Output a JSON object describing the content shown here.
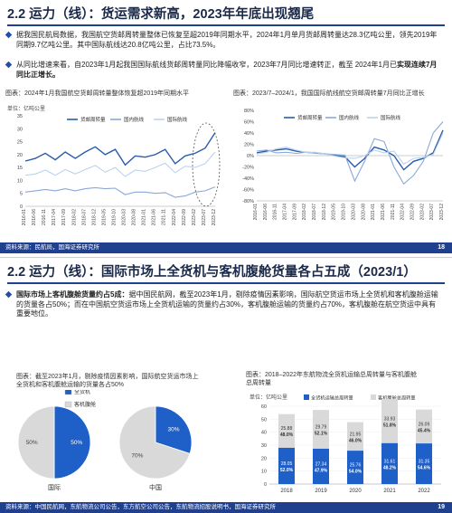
{
  "slide1": {
    "title": "2.2 运力（线）：货运需求新高，2023年年底出现翘尾",
    "bullet1": "据我国民航局数据，我国航空货邮周转量整体已恢复至超2019年同期水平，2024年1月单月货邮周转量达28.3亿吨公里，领先2019年同期9.7亿吨公里。其中国际航线达20.8亿吨公里，占比73.5%。",
    "bullet2a": "从同比增速来看，自2023年1月起我国国际航线货邮周转量同比降幅收窄，2023年7月同比增速转正，截至 2024年1月已",
    "bullet2b": "实现连续7月同比正增长。",
    "chart1_caption": "图表：2024年1月我国航空货邮周转量整体恢复超2019年同期水平",
    "chart2_caption": "图表：2023/7–2024/1，我国国际航线航空货邮周转量7月同比正增长",
    "footer": "资料来源：民航局，国海证券研究所",
    "page": "18"
  },
  "slide2": {
    "title": "2.2 运力（线）：国际市场上全货机与客机腹舱货量各占五成（2023/1）",
    "bullet_bold": "国际市场上客机腹舱货量约占5成：",
    "bullet_text": "据中国民航网，截至2023年1月，剔除疫情因素影响，国际航空货运市场上全货机和客机腹舱运输的货量各占50%；而在中国航空货运市场上全货机运输的货量约占30%，客机腹舱运输的货量约占70%，客机腹舱在航空货运中具有重要地位。",
    "pie_caption_1": "图表：截至2023年1月，剔除疫情因素影响，国际航空货运市场上",
    "pie_caption_2": "全货机和客机腹舱运输的货量各占50%",
    "bar_caption_1": "图表：2018–2022年东航物流全货机运输总周转量与客机腹舱",
    "bar_caption_2": "总周转量",
    "footer": "资料来源：中国民航网，东航物流公司公告，东方航空公司公告，东航物流招股说明书，国海证券研究所",
    "page": "19"
  },
  "colors": {
    "navy": "#1f3f8f",
    "blue": "#1f5fc8",
    "gray": "#d9d9d9",
    "line_dark": "#2a5caa",
    "line_mid": "#8aa8d8",
    "line_light": "#bcd3ee"
  },
  "chart_data": [
    {
      "type": "line",
      "ylabel": "单位：亿吨公里",
      "ylim": [
        0,
        35
      ],
      "yticks": [
        "0",
        "5",
        "10",
        "15",
        "20",
        "25",
        "30",
        "35"
      ],
      "x": [
        "2016-01",
        "2016-06",
        "2016-11",
        "2017-04",
        "2017-09",
        "2018-02",
        "2018-07",
        "2018-12",
        "2019-05",
        "2019-10",
        "2020-03",
        "2020-08",
        "2021-01",
        "2021-06",
        "2021-11",
        "2022-04",
        "2022-09",
        "2023-02",
        "2023-07",
        "2023-12"
      ],
      "series": [
        {
          "name": "货邮周转量",
          "values": [
            17.5,
            18.5,
            20.5,
            18.0,
            21.0,
            18.5,
            21.0,
            23.0,
            20.0,
            22.0,
            16.0,
            19.5,
            19.0,
            20.0,
            22.0,
            16.5,
            19.5,
            20.5,
            22.5,
            28.5
          ]
        },
        {
          "name": "国内航线",
          "values": [
            5.5,
            6.0,
            6.5,
            6.0,
            6.8,
            6.0,
            6.8,
            7.2,
            6.8,
            7.0,
            4.5,
            5.5,
            5.5,
            5.0,
            5.3,
            3.5,
            4.0,
            5.5,
            6.0,
            7.5
          ]
        },
        {
          "name": "国际航线",
          "values": [
            12.0,
            12.5,
            14.0,
            12.0,
            14.2,
            12.5,
            14.2,
            15.8,
            13.2,
            15.0,
            11.5,
            14.0,
            13.5,
            15.0,
            16.7,
            13.0,
            15.5,
            15.0,
            16.5,
            21.0
          ]
        }
      ]
    },
    {
      "type": "line",
      "ylim": [
        -80,
        80
      ],
      "yticks": [
        "-80%",
        "-60%",
        "-40%",
        "-20%",
        "0%",
        "20%",
        "40%",
        "60%",
        "80%"
      ],
      "x": [
        "2016-01",
        "2016-06",
        "2016-11",
        "2017-04",
        "2017-09",
        "2018-02",
        "2018-07",
        "2018-12",
        "2019-05",
        "2019-10",
        "2020-03",
        "2020-08",
        "2021-01",
        "2021-06",
        "2021-11",
        "2022-04",
        "2022-09",
        "2023-02",
        "2023-07",
        "2023-12"
      ],
      "series": [
        {
          "name": "货邮周转量",
          "values": [
            5,
            8,
            10,
            12,
            8,
            6,
            5,
            3,
            0,
            -2,
            -20,
            -5,
            15,
            10,
            0,
            -25,
            -10,
            -5,
            5,
            45
          ]
        },
        {
          "name": "国内航线",
          "values": [
            8,
            10,
            5,
            6,
            4,
            6,
            4,
            3,
            2,
            1,
            -45,
            -10,
            30,
            25,
            -20,
            -50,
            -35,
            -10,
            40,
            60
          ]
        },
        {
          "name": "国际航线",
          "values": [
            3,
            6,
            12,
            15,
            10,
            6,
            6,
            3,
            -1,
            -4,
            -5,
            0,
            10,
            5,
            8,
            -15,
            -5,
            -3,
            2,
            40
          ]
        }
      ]
    },
    {
      "type": "pie",
      "label": "国际",
      "legend": [
        "全货机",
        "客机腹舱"
      ],
      "slices": [
        {
          "name": "全货机",
          "value": 50,
          "label": "50%"
        },
        {
          "name": "客机腹舱",
          "value": 50,
          "label": "50%"
        }
      ]
    },
    {
      "type": "pie",
      "label": "中国",
      "slices": [
        {
          "name": "全货机",
          "value": 30,
          "label": "30%"
        },
        {
          "name": "客机腹舱",
          "value": 70,
          "label": "70%"
        }
      ]
    },
    {
      "type": "bar",
      "ylabel": "单位：亿吨公里",
      "legend": [
        "全货机运输总周转量",
        "客机腹舱总周转量"
      ],
      "ylim": [
        0,
        60
      ],
      "yticks": [
        "0",
        "10",
        "20",
        "30",
        "40",
        "50",
        "60"
      ],
      "categories": [
        "2018",
        "2019",
        "2020",
        "2021",
        "2022"
      ],
      "series": [
        {
          "name": "全货机运输总周转量",
          "values": [
            28.05,
            27.34,
            25.76,
            31.61,
            31.35
          ],
          "share": [
            "52.0%",
            "47.9%",
            "54.0%",
            "48.2%",
            "54.6%"
          ]
        },
        {
          "name": "客机腹舱总周转量",
          "values": [
            25.88,
            29.79,
            21.95,
            33.93,
            26.09
          ],
          "share": [
            "48.0%",
            "52.1%",
            "46.0%",
            "51.8%",
            "45.4%"
          ]
        }
      ]
    }
  ]
}
